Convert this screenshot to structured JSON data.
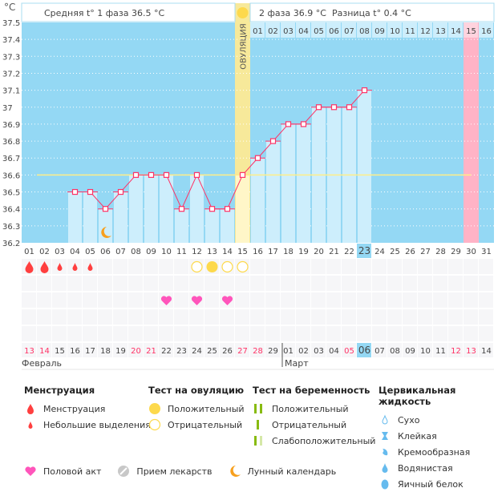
{
  "chart_data": {
    "type": "line",
    "unit": "°C",
    "ylim": [
      36.2,
      37.5
    ],
    "yticks": [
      "37.5",
      "37.4",
      "37.3",
      "37.2",
      "37.1",
      "37",
      "36.9",
      "36.8",
      "36.7",
      "36.6",
      "36.5",
      "36.4",
      "36.3",
      "36.2"
    ],
    "cycle_days": [
      "01",
      "02",
      "03",
      "04",
      "05",
      "06",
      "07",
      "08",
      "09",
      "10",
      "11",
      "12",
      "13",
      "14",
      "15",
      "16",
      "17",
      "18",
      "19",
      "20",
      "21",
      "22",
      "23",
      "24",
      "25",
      "26",
      "27",
      "28",
      "29",
      "30",
      "31"
    ],
    "current_cycle_day": 23,
    "temperatures": [
      null,
      null,
      null,
      36.5,
      36.5,
      36.4,
      36.5,
      36.6,
      36.6,
      36.6,
      36.4,
      36.6,
      36.4,
      36.4,
      36.6,
      36.7,
      36.8,
      36.9,
      36.9,
      37.0,
      37.0,
      37.0,
      37.1,
      null,
      null,
      null,
      null,
      null,
      null,
      null,
      null
    ],
    "coverline": 36.6,
    "coverline_range": [
      2,
      30
    ],
    "ovulation_day": 15,
    "ovulation_label": "ОВУЛЯЦИЯ",
    "expected_period_day": 30,
    "luteal_days": [
      "01",
      "02",
      "03",
      "04",
      "05",
      "06",
      "07",
      "08",
      "09",
      "10",
      "11",
      "12",
      "13",
      "14",
      "15",
      "16"
    ],
    "phase1_text": "Средняя t° 1 фаза 36.5 °C",
    "phase2_text": "2 фаза 36.9 °C",
    "diff_text": "Разница t° 0.4 °C",
    "calendar_dates": [
      "13",
      "14",
      "15",
      "16",
      "17",
      "18",
      "19",
      "20",
      "21",
      "22",
      "23",
      "24",
      "25",
      "26",
      "27",
      "28",
      "29",
      "01",
      "02",
      "03",
      "04",
      "05",
      "06",
      "07",
      "08",
      "09",
      "10",
      "11",
      "12",
      "13",
      "14"
    ],
    "calendar_red": [
      1,
      2,
      8,
      9,
      15,
      16,
      22,
      29,
      30
    ],
    "today_index": 23,
    "months": [
      {
        "label": "Февраль",
        "start": 1
      },
      {
        "label": "Март",
        "start": 18
      }
    ],
    "menstruation": {
      "heavy": [
        1,
        2
      ],
      "light": [
        3,
        4,
        5
      ]
    },
    "ovulation_tests": {
      "positive": [
        13
      ],
      "negative": [
        12,
        14,
        15
      ]
    },
    "intercourse": [
      10,
      12,
      14
    ],
    "moon": [
      6
    ],
    "colors": {
      "bg": "#94d8f4",
      "bar": "#cdeefc",
      "line": "#ff3366",
      "coverline": "#ffee88",
      "ovulation": "#f7e99a",
      "period": "#ffb3c6",
      "red": "#ff3366",
      "drop": "#ff3f3f",
      "heart": "#ff55bb",
      "yellow": "#fdd94c"
    }
  },
  "legend": {
    "menstruation": {
      "title": "Менструация",
      "items": [
        "Менструация",
        "Небольшие выделения"
      ]
    },
    "ovulation_test": {
      "title": "Тест на овуляцию",
      "items": [
        "Положительный",
        "Отрицательный"
      ]
    },
    "pregnancy_test": {
      "title": "Тест на беременность",
      "items": [
        "Положительный",
        "Отрицательный",
        "Слабоположительный"
      ]
    },
    "cervical": {
      "title": "Цервикальная жидкость",
      "items": [
        "Сухо",
        "Клейкая",
        "Кремообразная",
        "Водянистая",
        "Яичный белок"
      ]
    },
    "other": [
      "Половой акт",
      "Прием лекарств",
      "Лунный календарь"
    ]
  }
}
